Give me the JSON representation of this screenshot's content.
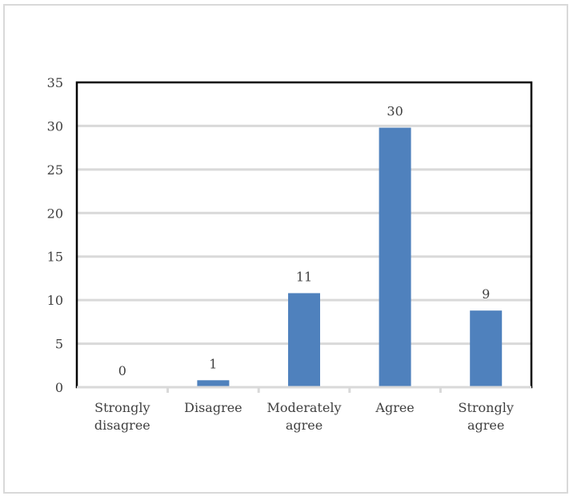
{
  "chart_data": {
    "type": "bar",
    "title": "",
    "xlabel": "",
    "ylabel": "",
    "categories": [
      [
        "Strongly",
        "disagree"
      ],
      [
        "Disagree"
      ],
      [
        "Moderately",
        "agree"
      ],
      [
        "Agree"
      ],
      [
        "Strongly",
        "agree"
      ]
    ],
    "values": [
      0,
      1,
      11,
      30,
      9
    ],
    "plotted_values": [
      0,
      0.8,
      10.8,
      29.8,
      8.8
    ],
    "ylim": [
      0,
      35
    ],
    "yticks": [
      "0",
      "5",
      "10",
      "15",
      "20",
      "25",
      "30",
      "35"
    ],
    "data_labels": [
      "0",
      "1",
      "11",
      "30",
      "9"
    ],
    "grid": true,
    "legend": "none",
    "bar_color": "#4f81bd",
    "grid_color": "#d9d9d9",
    "axis_color": "#000000"
  }
}
